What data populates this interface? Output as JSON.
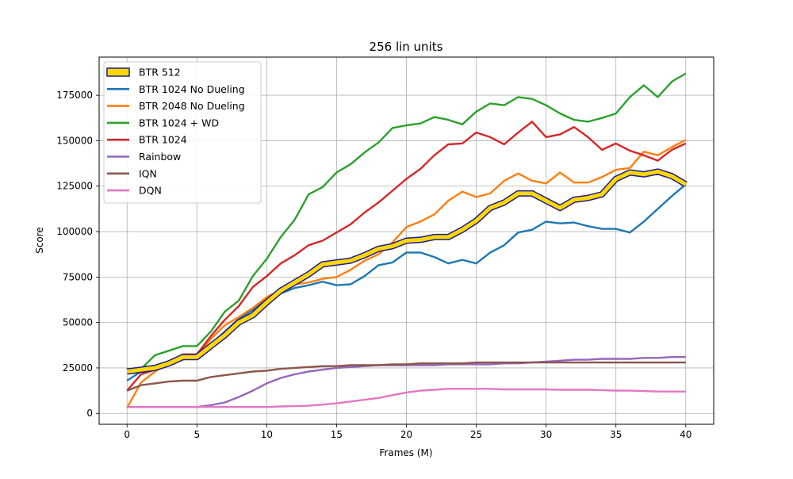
{
  "chart_data": {
    "type": "line",
    "title": "256 lin units",
    "xlabel": "Frames (M)",
    "ylabel": "Score",
    "xlim": [
      -2,
      42
    ],
    "ylim": [
      -6000,
      196000
    ],
    "xticks": [
      0,
      5,
      10,
      15,
      20,
      25,
      30,
      35,
      40
    ],
    "xtick_labels": [
      "0",
      "5",
      "10",
      "15",
      "20",
      "25",
      "30",
      "35",
      "40"
    ],
    "yticks": [
      0,
      25000,
      50000,
      75000,
      100000,
      125000,
      150000,
      175000
    ],
    "ytick_labels": [
      "0",
      "25000",
      "50000",
      "75000",
      "100000",
      "125000",
      "150000",
      "175000"
    ],
    "grid": true,
    "legend_position": "top-left",
    "x": [
      0,
      1,
      2,
      3,
      4,
      5,
      6,
      7,
      8,
      9,
      10,
      11,
      12,
      13,
      14,
      15,
      16,
      17,
      18,
      19,
      20,
      21,
      22,
      23,
      24,
      25,
      26,
      27,
      28,
      29,
      30,
      31,
      32,
      33,
      34,
      35,
      36,
      37,
      38,
      39,
      40
    ],
    "series": [
      {
        "name": "BTR 512",
        "color": "#ffd700",
        "edge_color": "#1f1f8f",
        "highlight": true,
        "values": [
          23000,
          24000,
          25000,
          27500,
          31000,
          31000,
          37000,
          43000,
          50000,
          54000,
          61000,
          67500,
          72000,
          76500,
          82000,
          83000,
          84000,
          87000,
          90500,
          92000,
          95000,
          95500,
          97000,
          97000,
          101000,
          106000,
          113000,
          116000,
          121000,
          121000,
          117000,
          113000,
          117500,
          118500,
          120500,
          129000,
          132500,
          131500,
          133000,
          130500,
          126000
        ]
      },
      {
        "name": "BTR 1024 No Dueling",
        "color": "#1f77b4",
        "values": [
          18000,
          23000,
          24000,
          28500,
          31500,
          31500,
          38000,
          45000,
          52000,
          57000,
          63000,
          66000,
          69000,
          70500,
          72500,
          70500,
          71000,
          75500,
          81500,
          83000,
          88500,
          88500,
          86000,
          82500,
          84500,
          82500,
          88500,
          92500,
          99500,
          101000,
          105500,
          104500,
          105000,
          103000,
          101500,
          101500,
          99500,
          105500,
          112500,
          119500,
          126000
        ]
      },
      {
        "name": "BTR 2048 No Dueling",
        "color": "#ff7f0e",
        "values": [
          3000,
          17000,
          23000,
          27500,
          31500,
          31500,
          41000,
          48500,
          53000,
          58000,
          64000,
          68000,
          71000,
          72000,
          74000,
          75000,
          79000,
          84000,
          87500,
          94000,
          102500,
          105500,
          109500,
          117000,
          122000,
          119000,
          121000,
          128000,
          132000,
          128000,
          126500,
          132500,
          127000,
          127000,
          130000,
          134000,
          135000,
          144000,
          142000,
          146500,
          150500
        ]
      },
      {
        "name": "BTR 1024 + WD",
        "color": "#2ca02c",
        "values": [
          23000,
          24500,
          32000,
          34500,
          37000,
          37000,
          45000,
          56000,
          62000,
          75500,
          85000,
          97000,
          106500,
          120500,
          124500,
          132500,
          137000,
          143500,
          149000,
          157000,
          158500,
          159500,
          163000,
          161500,
          159000,
          166000,
          170500,
          169500,
          174000,
          173000,
          169500,
          165000,
          161500,
          160500,
          162500,
          165000,
          174000,
          180500,
          174000,
          182500,
          187000
        ]
      },
      {
        "name": "BTR 1024",
        "color": "#d62728",
        "values": [
          12500,
          21500,
          24000,
          28500,
          32500,
          32500,
          42500,
          51500,
          59000,
          69500,
          75500,
          82500,
          87000,
          92500,
          95000,
          99500,
          104000,
          110500,
          116000,
          122500,
          129000,
          134500,
          142000,
          148000,
          148500,
          154500,
          152000,
          148000,
          154500,
          160500,
          152000,
          153500,
          157500,
          152000,
          145000,
          148500,
          144500,
          142000,
          139000,
          145000,
          148500
        ]
      },
      {
        "name": "Rainbow",
        "color": "#9467bd",
        "values": [
          3500,
          3500,
          3500,
          3500,
          3500,
          3500,
          4500,
          6000,
          9000,
          12500,
          16500,
          19500,
          21500,
          23000,
          24000,
          25000,
          25500,
          26000,
          26500,
          26500,
          26500,
          26500,
          26500,
          27000,
          27000,
          27000,
          27000,
          27500,
          27500,
          28000,
          28500,
          29000,
          29500,
          29500,
          30000,
          30000,
          30000,
          30500,
          30500,
          31000,
          31000
        ]
      },
      {
        "name": "IQN",
        "color": "#8c564b",
        "values": [
          12500,
          15500,
          16500,
          17500,
          18000,
          18000,
          20000,
          21000,
          22000,
          23000,
          23500,
          24500,
          25000,
          25500,
          26000,
          26000,
          26500,
          26500,
          26500,
          27000,
          27000,
          27500,
          27500,
          27500,
          27500,
          28000,
          28000,
          28000,
          28000,
          28000,
          28000,
          28000,
          28000,
          28000,
          28000,
          28000,
          28000,
          28000,
          28000,
          28000,
          28000
        ]
      },
      {
        "name": "DQN",
        "color": "#e377c2",
        "values": [
          3500,
          3500,
          3500,
          3500,
          3500,
          3500,
          3500,
          3500,
          3500,
          3500,
          3500,
          3800,
          4000,
          4200,
          4800,
          5500,
          6500,
          7500,
          8500,
          10000,
          11500,
          12500,
          13000,
          13500,
          13500,
          13500,
          13500,
          13200,
          13200,
          13200,
          13200,
          13000,
          13000,
          13000,
          12800,
          12500,
          12500,
          12300,
          12000,
          12000,
          12000
        ]
      }
    ]
  }
}
